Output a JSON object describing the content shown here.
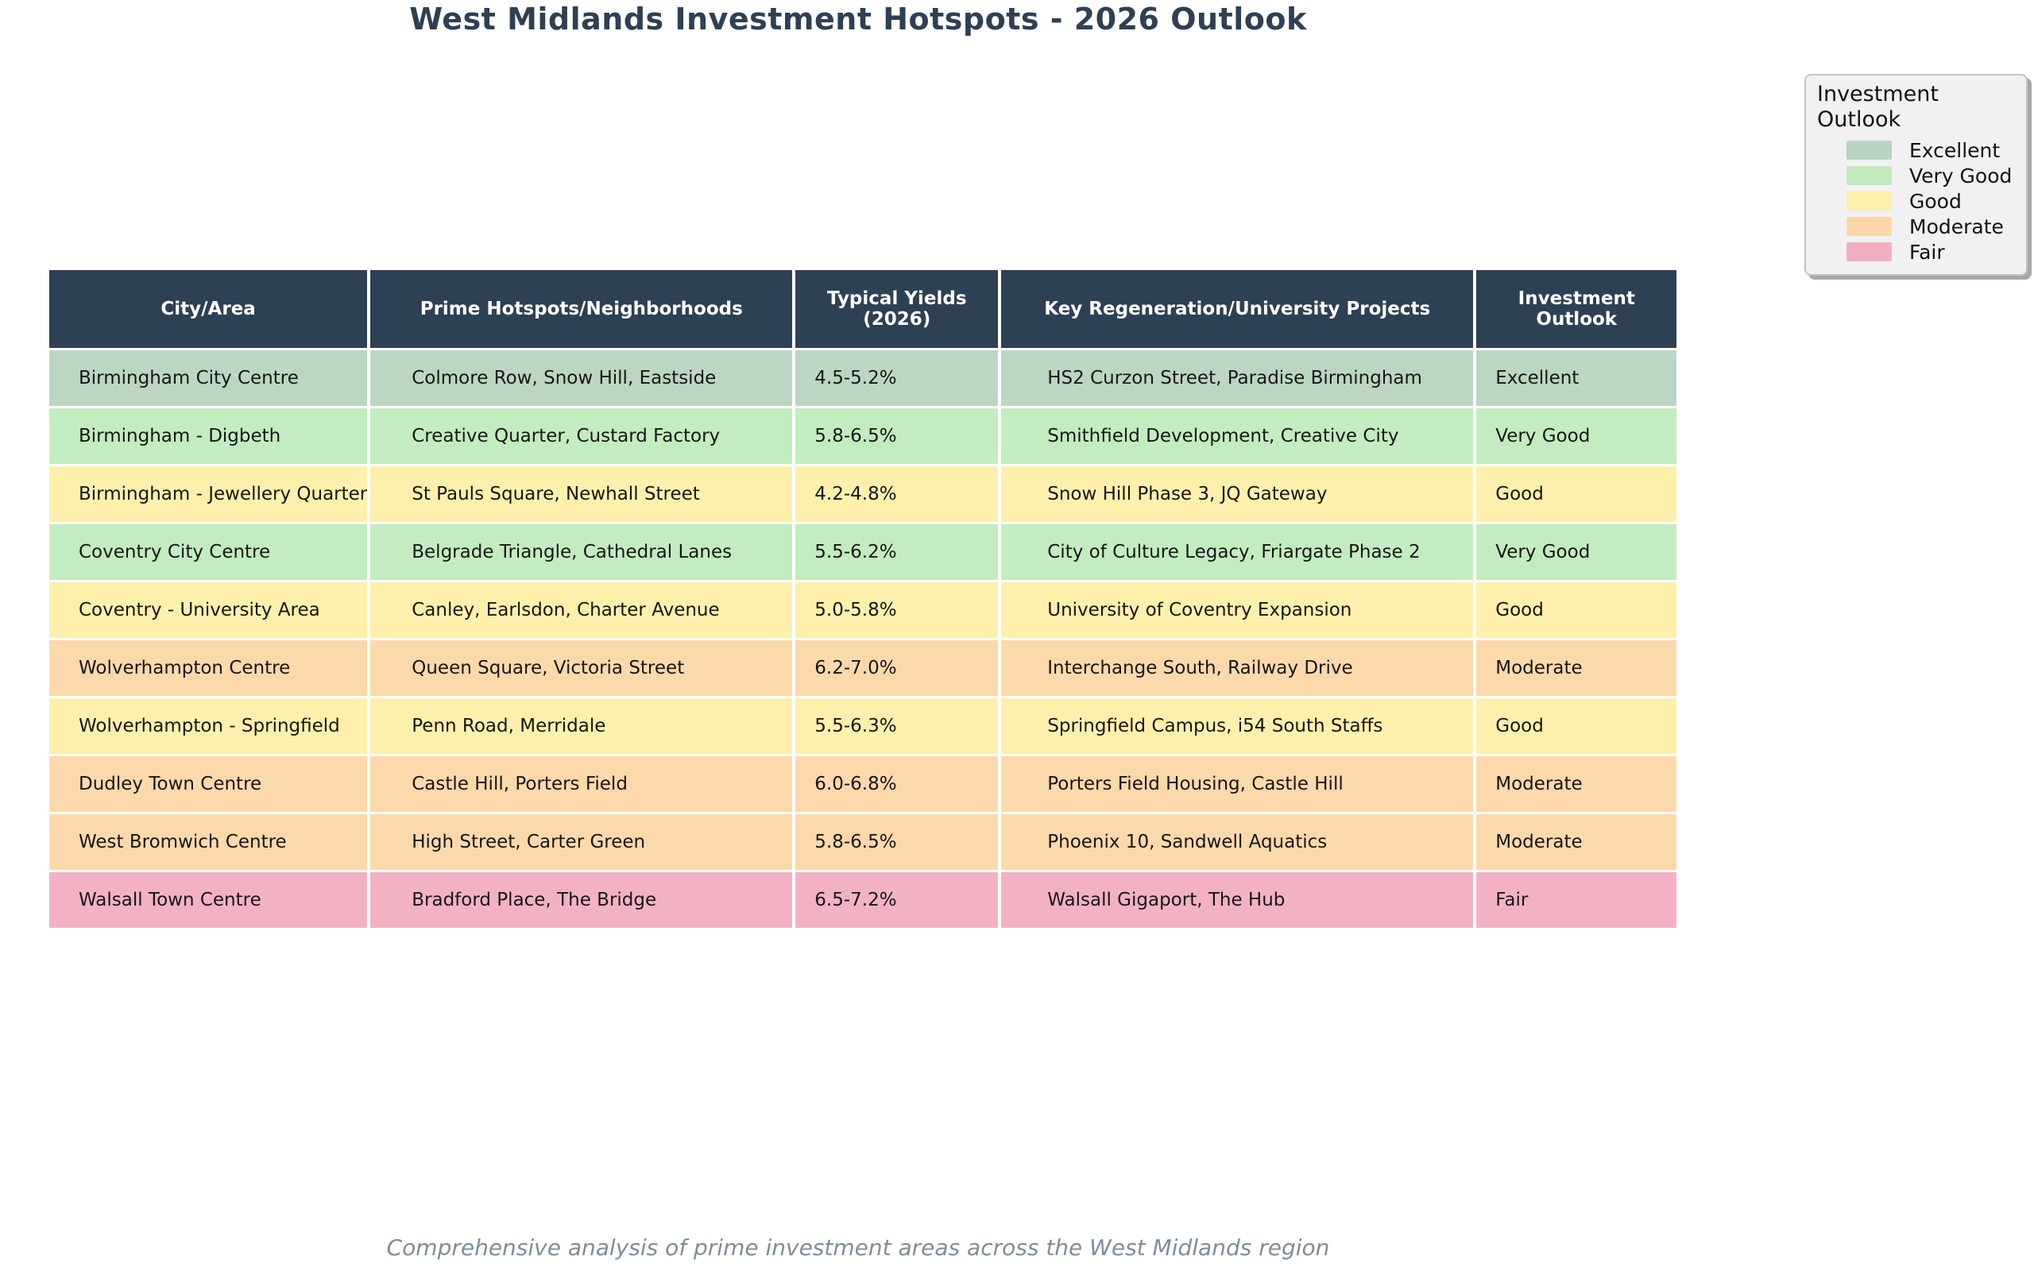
{
  "chart_data": {
    "type": "table",
    "title": "West Midlands Investment Hotspots - 2026 Outlook",
    "caption": "Comprehensive analysis of prime investment areas across the West Midlands region",
    "columns": [
      "City/Area",
      "Prime Hotspots/Neighborhoods",
      "Typical Yields (2026)",
      "Key Regeneration/University Projects",
      "Investment Outlook"
    ],
    "rows": [
      {
        "city": "Birmingham City Centre",
        "hotspots": "Colmore Row, Snow Hill, Eastside",
        "yields": "4.5-5.2%",
        "projects": "HS2 Curzon Street, Paradise Birmingham",
        "outlook": "Excellent"
      },
      {
        "city": "Birmingham - Digbeth",
        "hotspots": "Creative Quarter, Custard Factory",
        "yields": "5.8-6.5%",
        "projects": "Smithfield Development, Creative City",
        "outlook": "Very Good"
      },
      {
        "city": "Birmingham - Jewellery Quarter",
        "hotspots": "St Pauls Square, Newhall Street",
        "yields": "4.2-4.8%",
        "projects": "Snow Hill Phase 3, JQ Gateway",
        "outlook": "Good"
      },
      {
        "city": "Coventry City Centre",
        "hotspots": "Belgrade Triangle, Cathedral Lanes",
        "yields": "5.5-6.2%",
        "projects": "City of Culture Legacy, Friargate Phase 2",
        "outlook": "Very Good"
      },
      {
        "city": "Coventry - University Area",
        "hotspots": "Canley, Earlsdon, Charter Avenue",
        "yields": "5.0-5.8%",
        "projects": "University of Coventry Expansion",
        "outlook": "Good"
      },
      {
        "city": "Wolverhampton Centre",
        "hotspots": "Queen Square, Victoria Street",
        "yields": "6.2-7.0%",
        "projects": "Interchange South, Railway Drive",
        "outlook": "Moderate"
      },
      {
        "city": "Wolverhampton - Springfield",
        "hotspots": "Penn Road, Merridale",
        "yields": "5.5-6.3%",
        "projects": "Springfield Campus, i54 South Staffs",
        "outlook": "Good"
      },
      {
        "city": "Dudley Town Centre",
        "hotspots": "Castle Hill, Porters Field",
        "yields": "6.0-6.8%",
        "projects": "Porters Field Housing, Castle Hill",
        "outlook": "Moderate"
      },
      {
        "city": "West Bromwich Centre",
        "hotspots": "High Street, Carter Green",
        "yields": "5.8-6.5%",
        "projects": "Phoenix 10, Sandwell Aquatics",
        "outlook": "Moderate"
      },
      {
        "city": "Walsall Town Centre",
        "hotspots": "Bradford Place, The Bridge",
        "yields": "6.5-7.2%",
        "projects": "Walsall Gigaport, The Hub",
        "outlook": "Fair"
      }
    ],
    "legend": {
      "title": "Investment Outlook",
      "position": "upper right",
      "items": [
        {
          "label": "Excellent",
          "color": "#b9d4c1"
        },
        {
          "label": "Very Good",
          "color": "#c1eabd"
        },
        {
          "label": "Good",
          "color": "#fcefab"
        },
        {
          "label": "Moderate",
          "color": "#fbd7a9"
        },
        {
          "label": "Fair",
          "color": "#f1b0c2"
        }
      ]
    },
    "outlook_colors": {
      "Excellent": "#bcd6c3",
      "Very Good": "#c3ecc0",
      "Good": "#fdf0ad",
      "Moderate": "#fcd9ab",
      "Fair": "#f3b2c4"
    },
    "colors": {
      "header_bg": "#2e4053",
      "header_text": "#ffffff",
      "title_text": "#2e4053",
      "caption_text": "#7f8d9b",
      "cell_text": "#161616"
    },
    "grid": "white cell separators",
    "legend_visible": true
  }
}
